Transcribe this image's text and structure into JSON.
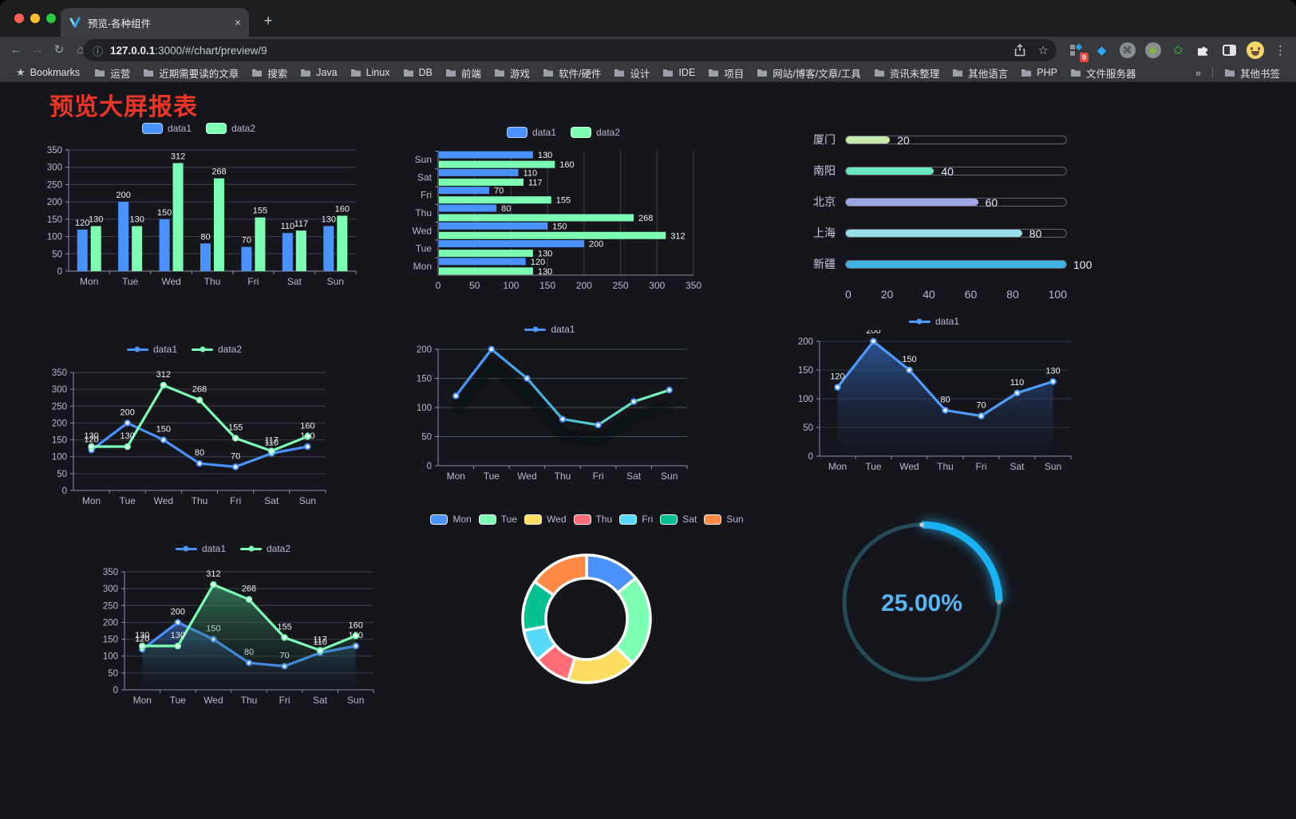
{
  "browser": {
    "tab": {
      "title": "预览-各种组件",
      "close_icon": "×"
    },
    "new_tab_icon": "+",
    "nav": {
      "back_icon": "←",
      "forward_icon": "→",
      "reload_icon": "↻",
      "home_icon": "⌂"
    },
    "address": {
      "info_icon": "ⓘ",
      "host": "127.0.0.1",
      "rest": ":3000/#/chart/preview/9",
      "star_icon": "☆"
    },
    "extensions_badge": "9",
    "cmd_icon": "⌘",
    "green_star_icon": "✩",
    "menu_icon": "⋮",
    "bookmarks_bar": {
      "star_icon": "★",
      "label": "Bookmarks",
      "folders": [
        "运营",
        "近期需要读的文章",
        "搜索",
        "Java",
        "Linux",
        "DB",
        "前端",
        "游戏",
        "软件/硬件",
        "设计",
        "IDE",
        "项目",
        "网站/博客/文章/工具",
        "资讯未整理",
        "其他语言",
        "PHP",
        "文件服务器"
      ],
      "overflow_icon": "»",
      "other_label": "其他书签"
    }
  },
  "page": {
    "title": "预览大屏报表"
  },
  "chart_data": [
    {
      "id": "bar-vertical",
      "type": "bar",
      "categories": [
        "Mon",
        "Tue",
        "Wed",
        "Thu",
        "Fri",
        "Sat",
        "Sun"
      ],
      "series": [
        {
          "name": "data1",
          "color": "#4992ff",
          "values": [
            120,
            200,
            150,
            80,
            70,
            110,
            130
          ]
        },
        {
          "name": "data2",
          "color": "#7cffb2",
          "values": [
            130,
            130,
            312,
            268,
            155,
            117,
            160
          ]
        }
      ],
      "ylim": [
        0,
        350
      ],
      "ystep": 50,
      "value_labels": true,
      "grid": true,
      "legend": {
        "marker": "rect",
        "position": "top"
      }
    },
    {
      "id": "bar-horizontal",
      "type": "bar",
      "orientation": "horizontal",
      "categories": [
        "Mon",
        "Tue",
        "Wed",
        "Thu",
        "Fri",
        "Sat",
        "Sun"
      ],
      "series": [
        {
          "name": "data1",
          "color": "#4992ff",
          "values": [
            120,
            200,
            150,
            80,
            70,
            110,
            130
          ]
        },
        {
          "name": "data2",
          "color": "#7cffb2",
          "values": [
            130,
            130,
            312,
            268,
            155,
            117,
            160
          ]
        }
      ],
      "xlim": [
        0,
        350
      ],
      "xstep": 50,
      "value_labels": true,
      "grid": true,
      "legend": {
        "marker": "rect",
        "position": "top"
      }
    },
    {
      "id": "progress",
      "type": "bar",
      "orientation": "horizontal-progress",
      "rows": [
        {
          "label": "厦门",
          "value": 20,
          "color": "#c4ebad"
        },
        {
          "label": "南阳",
          "value": 40,
          "color": "#6be6c1"
        },
        {
          "label": "北京",
          "value": 60,
          "color": "#a0a7e6"
        },
        {
          "label": "上海",
          "value": 80,
          "color": "#96dee8"
        },
        {
          "label": "新疆",
          "value": 100,
          "color": "#3fb1e3"
        }
      ],
      "xlim": [
        0,
        100
      ],
      "xticks": [
        0,
        20,
        40,
        60,
        80,
        100
      ]
    },
    {
      "id": "line-basic",
      "type": "line",
      "categories": [
        "Mon",
        "Tue",
        "Wed",
        "Thu",
        "Fri",
        "Sat",
        "Sun"
      ],
      "series": [
        {
          "name": "data1",
          "color": "#4992ff",
          "values": [
            120,
            200,
            150,
            80,
            70,
            110,
            130
          ]
        },
        {
          "name": "data2",
          "color": "#7cffb2",
          "values": [
            130,
            130,
            312,
            268,
            155,
            117,
            160
          ]
        }
      ],
      "ylim": [
        0,
        350
      ],
      "ystep": 50,
      "value_labels": true,
      "grid": true,
      "legend": {
        "marker": "line",
        "position": "top"
      }
    },
    {
      "id": "line-gradient",
      "type": "line",
      "categories": [
        "Mon",
        "Tue",
        "Wed",
        "Thu",
        "Fri",
        "Sat",
        "Sun"
      ],
      "series": [
        {
          "name": "data1",
          "color": "#4992ff",
          "gradient": [
            "#4992ff",
            "#46b9d8",
            "#7cffb2"
          ],
          "shadow": true,
          "values": [
            120,
            200,
            150,
            80,
            70,
            110,
            130
          ]
        }
      ],
      "ylim": [
        0,
        200
      ],
      "ystep": 50,
      "value_labels": false,
      "grid": true,
      "legend": {
        "marker": "line",
        "position": "top"
      }
    },
    {
      "id": "area-basic",
      "type": "area",
      "categories": [
        "Mon",
        "Tue",
        "Wed",
        "Thu",
        "Fri",
        "Sat",
        "Sun"
      ],
      "series": [
        {
          "name": "data1",
          "color": "#4f9bff",
          "area": [
            "rgba(53,105,190,0.75)",
            "rgba(25,40,70,0.04)"
          ],
          "values": [
            120,
            200,
            150,
            80,
            70,
            110,
            130
          ]
        }
      ],
      "ylim": [
        0,
        200
      ],
      "ystep": 50,
      "value_labels": true,
      "grid": true,
      "legend": {
        "marker": "line",
        "position": "top"
      }
    },
    {
      "id": "line-area",
      "type": "area",
      "categories": [
        "Mon",
        "Tue",
        "Wed",
        "Thu",
        "Fri",
        "Sat",
        "Sun"
      ],
      "series": [
        {
          "name": "data1",
          "color": "#4992ff",
          "area": [
            "rgba(73,146,255,0.45)",
            "rgba(20,30,55,0.03)"
          ],
          "values": [
            120,
            200,
            150,
            80,
            70,
            110,
            130
          ]
        },
        {
          "name": "data2",
          "color": "#7cffb2",
          "area": [
            "rgba(74,190,130,0.55)",
            "rgba(20,45,35,0.03)"
          ],
          "values": [
            130,
            130,
            312,
            268,
            155,
            117,
            160
          ]
        }
      ],
      "ylim": [
        0,
        350
      ],
      "ystep": 50,
      "value_labels": true,
      "grid": true,
      "legend": {
        "marker": "line",
        "position": "top"
      }
    },
    {
      "id": "pie-doughnut",
      "type": "pie",
      "categories": [
        "Mon",
        "Tue",
        "Wed",
        "Thu",
        "Fri",
        "Sat",
        "Sun"
      ],
      "values": [
        120,
        200,
        150,
        80,
        70,
        110,
        130
      ],
      "colors": [
        "#4992ff",
        "#7cffb2",
        "#fddd60",
        "#ff6e76",
        "#58d9f9",
        "#05c091",
        "#ff8a45"
      ],
      "donut": true,
      "border_color": "#ffffff",
      "legend": {
        "marker": "pie",
        "position": "top"
      }
    },
    {
      "id": "gauge",
      "type": "gauge",
      "value": 25,
      "max": 100,
      "label": "25.00%",
      "color": "#1ab2f2",
      "track_color": "#234c58",
      "text_color": "#55b6f2"
    }
  ]
}
